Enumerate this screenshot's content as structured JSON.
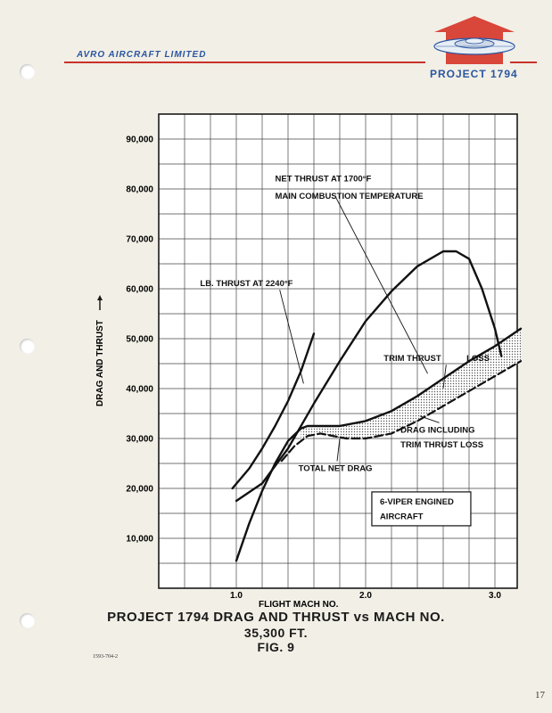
{
  "header": {
    "company": "AVRO AIRCRAFT LIMITED",
    "project": "PROJECT 1794",
    "accent_red": "#c8322a",
    "accent_blue": "#2a56a0"
  },
  "chart_data": {
    "type": "line",
    "title": "PROJECT 1794 DRAG AND THRUST vs MACH NO.",
    "subtitle": "35,300 FT.",
    "figure": "FIG. 9",
    "xlabel": "FLIGHT MACH NO.",
    "ylabel": "DRAG AND THRUST",
    "xlim": [
      0.4,
      3.2
    ],
    "ylim": [
      0,
      95000
    ],
    "x_ticks": [
      1.0,
      2.0,
      3.0
    ],
    "x_tick_labels": [
      "1.0",
      "2.0",
      "3.0"
    ],
    "y_ticks": [
      10000,
      20000,
      30000,
      40000,
      50000,
      60000,
      70000,
      80000,
      90000
    ],
    "y_tick_labels": [
      "10,000",
      "20,000",
      "30,000",
      "40,000",
      "50,000",
      "60,000",
      "70,000",
      "80,000",
      "90,000"
    ],
    "grid": true,
    "series": [
      {
        "style": "solid",
        "x": [
          0.97,
          1.1,
          1.2,
          1.3,
          1.4,
          1.5,
          1.6
        ],
        "y": [
          20000,
          24000,
          28000,
          32500,
          37500,
          43500,
          51000
        ]
      },
      {
        "style": "solid",
        "x": [
          1.0,
          1.2,
          1.4,
          1.6,
          1.8,
          2.0,
          2.2,
          2.4,
          2.6,
          2.7,
          2.8,
          2.9,
          3.0,
          3.05
        ],
        "y": [
          17500,
          21000,
          28000,
          37000,
          45500,
          53500,
          59500,
          64500,
          67500,
          67500,
          66000,
          60000,
          52000,
          46500
        ]
      },
      {
        "style": "solid",
        "x": [
          1.0,
          1.1,
          1.2,
          1.3,
          1.4,
          1.5,
          1.55,
          1.6,
          1.7,
          1.8,
          2.0,
          2.2,
          2.4,
          2.6,
          2.8,
          3.0,
          3.2
        ],
        "y": [
          5500,
          13000,
          19500,
          25000,
          29500,
          32000,
          32500,
          32500,
          32500,
          32500,
          33500,
          35500,
          38500,
          42000,
          45500,
          48500,
          52000
        ]
      },
      {
        "style": "dashed",
        "x": [
          1.35,
          1.45,
          1.55,
          1.65,
          1.75,
          1.85,
          2.0,
          2.2,
          2.4,
          2.6,
          2.8,
          3.0,
          3.2
        ],
        "y": [
          25500,
          28500,
          30500,
          31000,
          30500,
          30000,
          30000,
          31000,
          33500,
          36500,
          39500,
          42500,
          45500
        ]
      }
    ],
    "shaded_region": {
      "label": "TRIM THRUST LOSS",
      "x": [
        1.5,
        1.6,
        1.8,
        2.0,
        2.2,
        2.4,
        2.6,
        2.8,
        3.0,
        3.2
      ],
      "upper": [
        32000,
        32500,
        32500,
        33500,
        35500,
        38500,
        42000,
        45500,
        48500,
        52000
      ],
      "lower": [
        29500,
        31000,
        30000,
        30000,
        31000,
        33500,
        36500,
        39500,
        42500,
        45500
      ]
    },
    "annotations": [
      {
        "text": "NET THRUST AT 1700°F",
        "x": 2.48,
        "y": 43000,
        "tx": 1.3,
        "ty": 81500
      },
      {
        "text": "MAIN COMBUSTION TEMPERATURE",
        "tx": 1.3,
        "ty": 78000
      },
      {
        "text": "LB. THRUST AT 2240°F",
        "x": 1.52,
        "y": 41000,
        "tx": 0.72,
        "ty": 60500
      },
      {
        "text": "TRIM THRUST",
        "x": 2.6,
        "y": 40000,
        "tx": 2.14,
        "ty": 45500
      },
      {
        "text": "LOSS",
        "tx": 2.78,
        "ty": 45500
      },
      {
        "text": "DRAG INCLUDING",
        "x": 2.42,
        "y": 34500,
        "tx": 2.27,
        "ty": 31200
      },
      {
        "text": "TRIM THRUST LOSS",
        "tx": 2.27,
        "ty": 28200
      },
      {
        "text": "TOTAL NET DRAG",
        "x": 1.8,
        "y": 30000,
        "tx": 1.48,
        "ty": 23500
      },
      {
        "text": "6-VIPER ENGINED",
        "tx": 2.11,
        "ty": 16800,
        "box": true
      },
      {
        "text": "AIRCRAFT",
        "tx": 2.11,
        "ty": 13800
      }
    ]
  },
  "footer": {
    "doc_number": "1593-704-2",
    "page_number": "17"
  }
}
